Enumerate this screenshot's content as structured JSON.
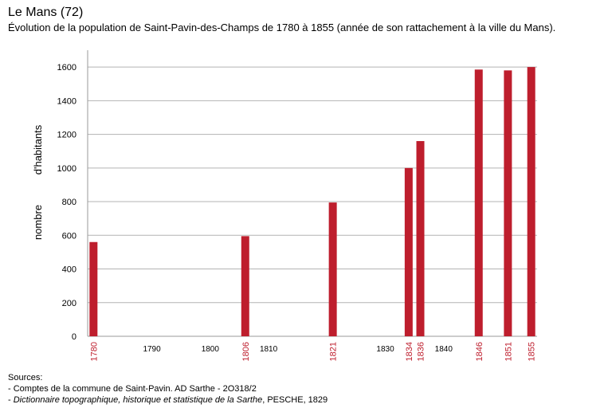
{
  "header": {
    "title": "Le Mans (72)",
    "subtitle": "Évolution de la population de Saint-Pavin-des-Champs de 1780 à 1855 (année de son rattachement à la ville du Mans)."
  },
  "chart_data": {
    "type": "bar",
    "title": "Le Mans (72)",
    "subtitle": "Évolution de la population de Saint-Pavin-des-Champs de 1780 à 1855 (année de son rattachement à la ville du Mans).",
    "ylabel_line1": "nombre",
    "ylabel_line2": "d'habitants",
    "xlabel": "",
    "x_axis_type": "linear-year",
    "xlim": [
      1779,
      1856
    ],
    "ylim": [
      0,
      1700
    ],
    "y_ticks": [
      0,
      200,
      400,
      600,
      800,
      1000,
      1200,
      1400,
      1600
    ],
    "x_ticks": [
      1790,
      1800,
      1810,
      1830,
      1840
    ],
    "grid": true,
    "bar_color": "#be1e2d",
    "highlight_label_color": "#be1e2d",
    "categories": [
      "1780",
      "1806",
      "1821",
      "1834",
      "1836",
      "1846",
      "1851",
      "1855"
    ],
    "x": [
      1780,
      1806,
      1821,
      1834,
      1836,
      1846,
      1851,
      1855
    ],
    "values": [
      560,
      595,
      795,
      1000,
      1160,
      1585,
      1580,
      1600
    ]
  },
  "sources": {
    "heading": "Sources:",
    "line1": "- Comptes de la commune de Saint-Pavin. AD Sarthe - 2O318/2",
    "line2_dash": "- ",
    "line2_italic": "Dictionnaire topographique, historique et statistique de la Sarthe",
    "line2_rest": ", PESCHE, 1829"
  }
}
